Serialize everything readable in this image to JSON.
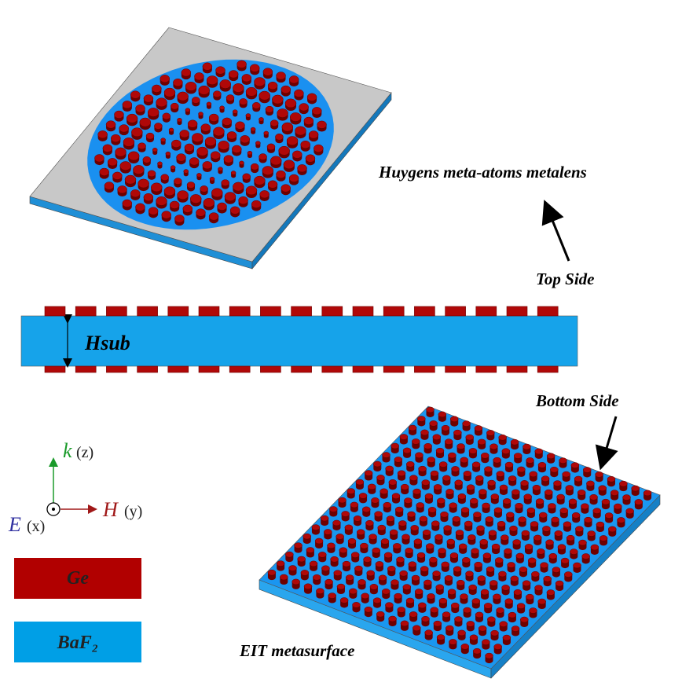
{
  "labels": {
    "metalens": "Huygens meta-atoms metalens",
    "top_side": "Top Side",
    "hsub": "Hsub",
    "bottom_side": "Bottom Side",
    "eit": "EIT metasurface"
  },
  "axes": {
    "k": "k",
    "z": "(z)",
    "h": "H",
    "y": "(y)",
    "e": "E",
    "x": "(x)"
  },
  "legend": [
    {
      "label": "Ge"
    },
    {
      "label": "BaF₂"
    }
  ]
}
